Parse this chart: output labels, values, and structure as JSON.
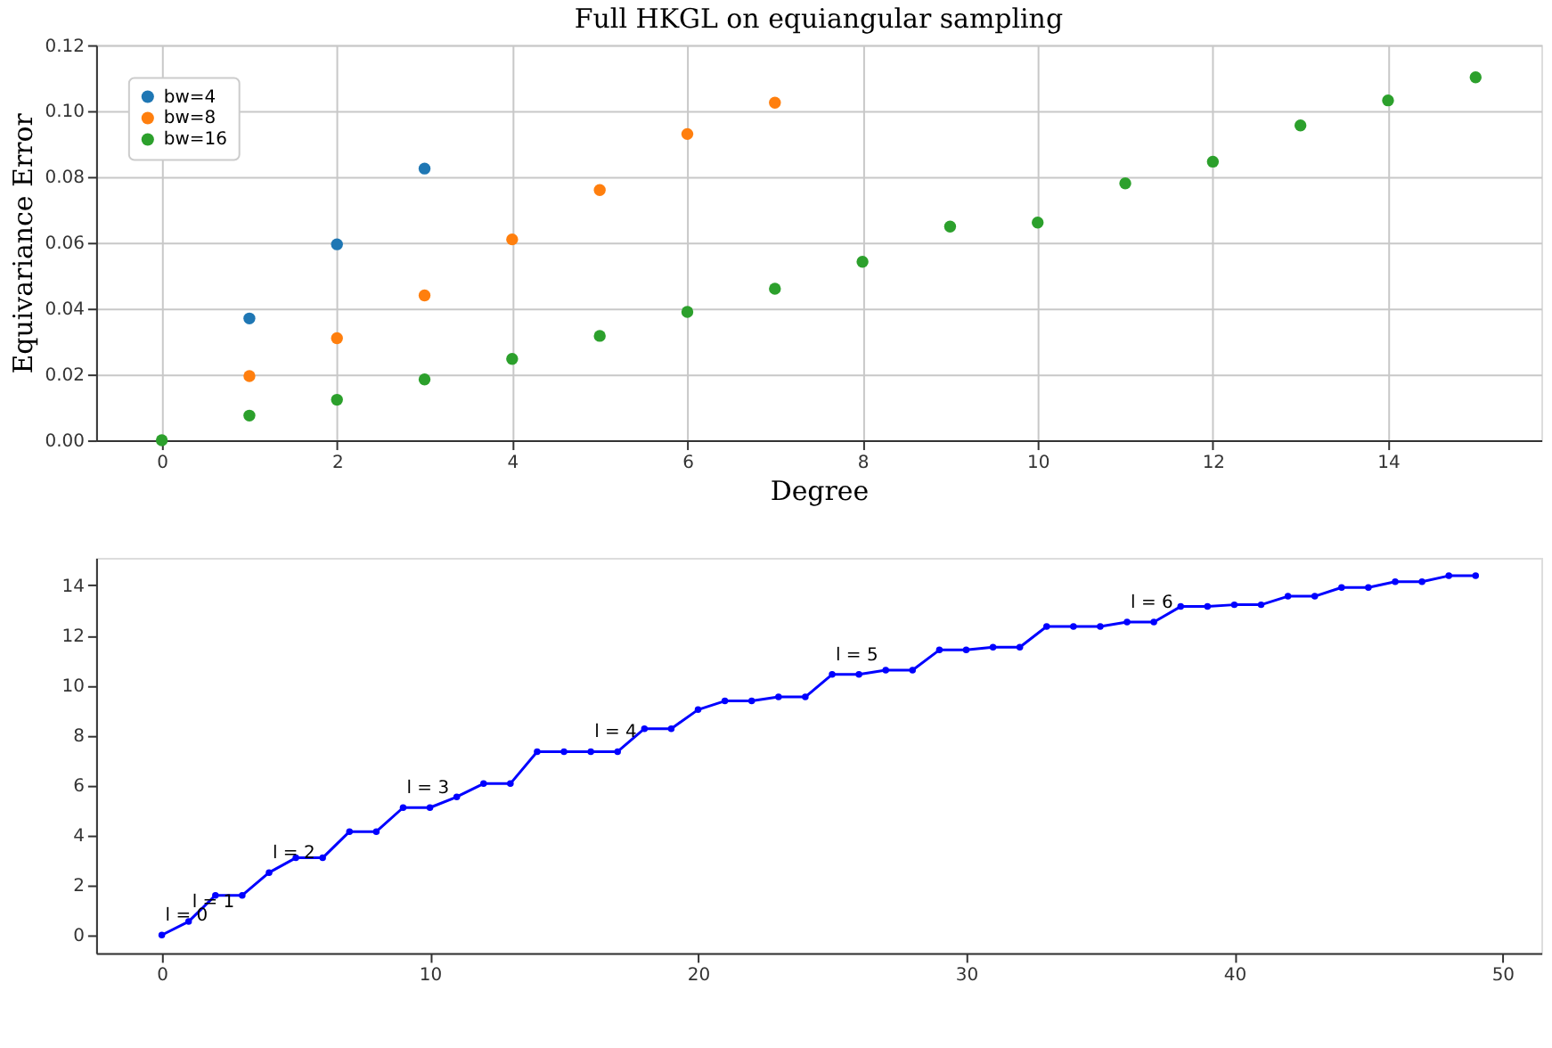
{
  "chart_data": [
    {
      "type": "scatter",
      "title": "Full HKGL on equiangular sampling",
      "xlabel": "Degree",
      "ylabel": "Equivariance Error",
      "xlim": [
        -0.75,
        15.75
      ],
      "xticks": [
        0,
        2,
        4,
        6,
        8,
        10,
        12,
        14
      ],
      "ylim": [
        0,
        0.12
      ],
      "yticks": [
        {
          "value": 0,
          "label": "0.00"
        },
        {
          "value": 0.02,
          "label": "0.02"
        },
        {
          "value": 0.04,
          "label": "0.04"
        },
        {
          "value": 0.06,
          "label": "0.06"
        },
        {
          "value": 0.08,
          "label": "0.08"
        },
        {
          "value": 0.1,
          "label": "0.10"
        },
        {
          "value": 0.12,
          "label": "0.12"
        }
      ],
      "grid": true,
      "legend": "top left",
      "marker": "circle",
      "series": [
        {
          "name": "bw=4",
          "color": "#1f77b4",
          "x": [
            1,
            2,
            3
          ],
          "values": [
            0.037,
            0.0595,
            0.0825
          ]
        },
        {
          "name": "bw=8",
          "color": "#ff7f0e",
          "x": [
            1,
            2,
            3,
            4,
            5,
            6,
            7
          ],
          "values": [
            0.0195,
            0.031,
            0.044,
            0.061,
            0.076,
            0.093,
            0.1025
          ]
        },
        {
          "name": "bw=16",
          "color": "#2ca02c",
          "x": [
            0,
            1,
            2,
            3,
            4,
            5,
            6,
            7,
            8,
            9,
            10,
            11,
            12,
            13,
            14,
            15
          ],
          "values": [
            0,
            0.0075,
            0.0123,
            0.0185,
            0.0247,
            0.0317,
            0.039,
            0.046,
            0.0542,
            0.0649,
            0.0661,
            0.078,
            0.0846,
            0.0956,
            0.1032,
            0.1102
          ]
        }
      ]
    },
    {
      "type": "line",
      "xlim": [
        -2.45,
        51.45
      ],
      "xticks": [
        0,
        10,
        20,
        30,
        40,
        50
      ],
      "ylim": [
        -0.72,
        15.1
      ],
      "yticks": [
        0,
        2,
        4,
        6,
        8,
        10,
        12,
        14
      ],
      "grid": false,
      "legend": false,
      "marker": "circle",
      "line_style": "solid",
      "series": [
        {
          "color": "#0000ff",
          "x": [
            0,
            1,
            2,
            3,
            4,
            5,
            6,
            7,
            8,
            9,
            10,
            11,
            12,
            13,
            14,
            15,
            16,
            17,
            18,
            19,
            20,
            21,
            22,
            23,
            24,
            25,
            26,
            27,
            28,
            29,
            30,
            31,
            32,
            33,
            34,
            35,
            36,
            37,
            38,
            39,
            40,
            41,
            42,
            43,
            44,
            45,
            46,
            47,
            48,
            49
          ],
          "values": [
            0,
            0.54,
            1.59,
            1.59,
            2.5,
            3.09,
            3.09,
            4.14,
            4.14,
            5.1,
            5.1,
            5.53,
            6.06,
            6.06,
            7.34,
            7.34,
            7.34,
            7.34,
            8.26,
            8.26,
            9.02,
            9.37,
            9.37,
            9.53,
            9.53,
            10.43,
            10.43,
            10.6,
            10.6,
            11.41,
            11.41,
            11.52,
            11.52,
            12.35,
            12.35,
            12.35,
            12.53,
            12.53,
            13.15,
            13.15,
            13.22,
            13.22,
            13.56,
            13.56,
            13.91,
            13.91,
            14.14,
            14.14,
            14.38,
            14.38
          ]
        }
      ],
      "annotations": [
        {
          "text": "l = 0",
          "x": 0,
          "y": 0
        },
        {
          "text": "l = 1",
          "x": 1,
          "y": 0.54
        },
        {
          "text": "l = 2",
          "x": 4,
          "y": 2.5
        },
        {
          "text": "l = 3",
          "x": 9,
          "y": 5.1
        },
        {
          "text": "l = 4",
          "x": 16,
          "y": 7.34
        },
        {
          "text": "l = 5",
          "x": 25,
          "y": 10.43
        },
        {
          "text": "l = 6",
          "x": 36,
          "y": 12.53
        }
      ]
    }
  ]
}
